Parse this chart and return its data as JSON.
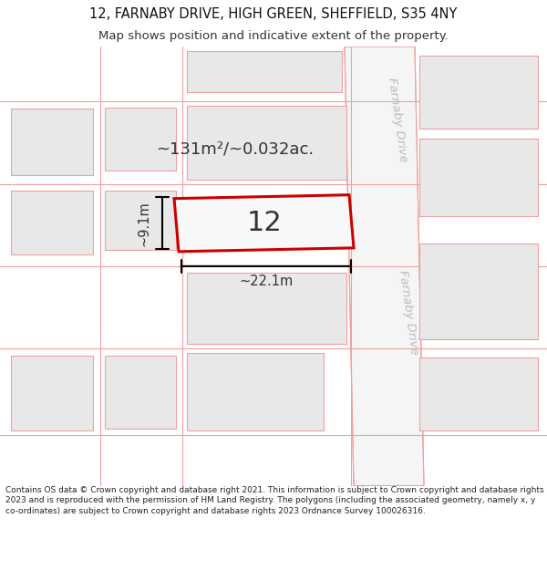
{
  "title_line1": "12, FARNABY DRIVE, HIGH GREEN, SHEFFIELD, S35 4NY",
  "title_line2": "Map shows position and indicative extent of the property.",
  "footer_text": "Contains OS data © Crown copyright and database right 2021. This information is subject to Crown copyright and database rights 2023 and is reproduced with the permission of HM Land Registry. The polygons (including the associated geometry, namely x, y co-ordinates) are subject to Crown copyright and database rights 2023 Ordnance Survey 100026316.",
  "area_label": "~131m²/~0.032ac.",
  "number_label": "12",
  "width_label": "~22.1m",
  "height_label": "~9.1m",
  "road_label": "Farnaby Drive",
  "title_fontsize": 10.5,
  "subtitle_fontsize": 9.5,
  "block_fc": "#e8e8e8",
  "block_ec": "#f0a0a0",
  "road_fc": "#ffffff",
  "road_ec": "#f0a0a0",
  "map_bg": "#ffffff",
  "highlight_ec": "#cc0000",
  "highlight_fc": "#f8f8f8",
  "road_text_color": "#bbbbbb",
  "dim_color": "#000000",
  "label_color": "#333333",
  "footer_fontsize": 6.5
}
